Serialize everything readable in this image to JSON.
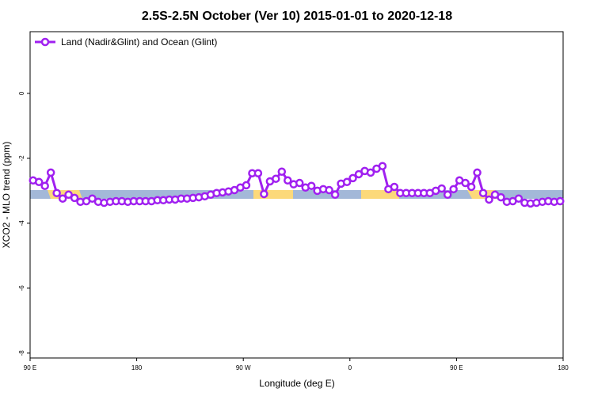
{
  "chart_data": {
    "type": "line",
    "title": "2.5S-2.5N October (Ver 10)   2015-01-01 to 2020-12-18",
    "x_label": "Longitude (deg E)",
    "y_label": "XCO2 - MLO trend (ppm)",
    "xlim": [
      90,
      540
    ],
    "ylim": [
      -8.15,
      1.9
    ],
    "xticks": [
      {
        "value": 90,
        "label": "90 E"
      },
      180,
      {
        "value": 270,
        "label": "90 W"
      },
      {
        "value": 360,
        "label": "0"
      },
      {
        "value": 450,
        "label": "90 E"
      },
      {
        "value": 540,
        "label": "180"
      }
    ],
    "yticks": [
      -8,
      -6,
      -4,
      -2,
      0
    ],
    "legend": "top-left",
    "x": [
      92.5,
      97.5,
      102.5,
      107.5,
      112.5,
      117.5,
      122.5,
      127.5,
      132.5,
      137.5,
      142.5,
      147.5,
      152.5,
      157.5,
      162.5,
      167.5,
      172.5,
      177.5,
      182.5,
      187.5,
      192.5,
      197.5,
      202.5,
      207.5,
      212.5,
      217.5,
      222.5,
      227.5,
      232.5,
      237.5,
      242.5,
      247.5,
      252.5,
      257.5,
      262.5,
      267.5,
      272.5,
      277.5,
      282.5,
      287.5,
      292.5,
      297.5,
      302.5,
      307.5,
      312.5,
      317.5,
      322.5,
      327.5,
      332.5,
      337.5,
      342.5,
      347.5,
      352.5,
      357.5,
      362.5,
      367.5,
      372.5,
      377.5,
      382.5,
      387.5,
      392.5,
      397.5,
      402.5,
      407.5,
      412.5,
      417.5,
      422.5,
      427.5,
      432.5,
      437.5,
      442.5,
      447.5,
      452.5,
      457.5,
      462.5,
      467.5,
      472.5,
      477.5,
      482.5,
      487.5,
      492.5,
      497.5,
      502.5,
      507.5,
      512.5,
      517.5,
      522.5,
      527.5,
      532.5,
      537.5
    ],
    "series": [
      {
        "name": "Land (Nadir&Glint) and Ocean (Glint)",
        "color": "#a020f0",
        "values": [
          -2.68,
          -2.73,
          -2.85,
          -2.44,
          -3.07,
          -3.24,
          -3.12,
          -3.22,
          -3.34,
          -3.32,
          -3.24,
          -3.34,
          -3.37,
          -3.34,
          -3.32,
          -3.32,
          -3.34,
          -3.32,
          -3.32,
          -3.32,
          -3.32,
          -3.29,
          -3.29,
          -3.27,
          -3.27,
          -3.24,
          -3.24,
          -3.22,
          -3.2,
          -3.17,
          -3.12,
          -3.07,
          -3.05,
          -3.02,
          -2.98,
          -2.9,
          -2.83,
          -2.46,
          -2.46,
          -3.1,
          -2.71,
          -2.63,
          -2.41,
          -2.68,
          -2.8,
          -2.76,
          -2.9,
          -2.85,
          -3.0,
          -2.95,
          -2.98,
          -3.12,
          -2.78,
          -2.73,
          -2.61,
          -2.49,
          -2.39,
          -2.44,
          -2.32,
          -2.24,
          -2.95,
          -2.88,
          -3.07,
          -3.07,
          -3.07,
          -3.07,
          -3.07,
          -3.07,
          -3.0,
          -2.93,
          -3.12,
          -2.95,
          -2.68,
          -2.76,
          -2.88,
          -2.44,
          -3.07,
          -3.27,
          -3.12,
          -3.2,
          -3.34,
          -3.32,
          -3.24,
          -3.37,
          -3.39,
          -3.37,
          -3.34,
          -3.32,
          -3.34,
          -3.32
        ]
      }
    ]
  }
}
